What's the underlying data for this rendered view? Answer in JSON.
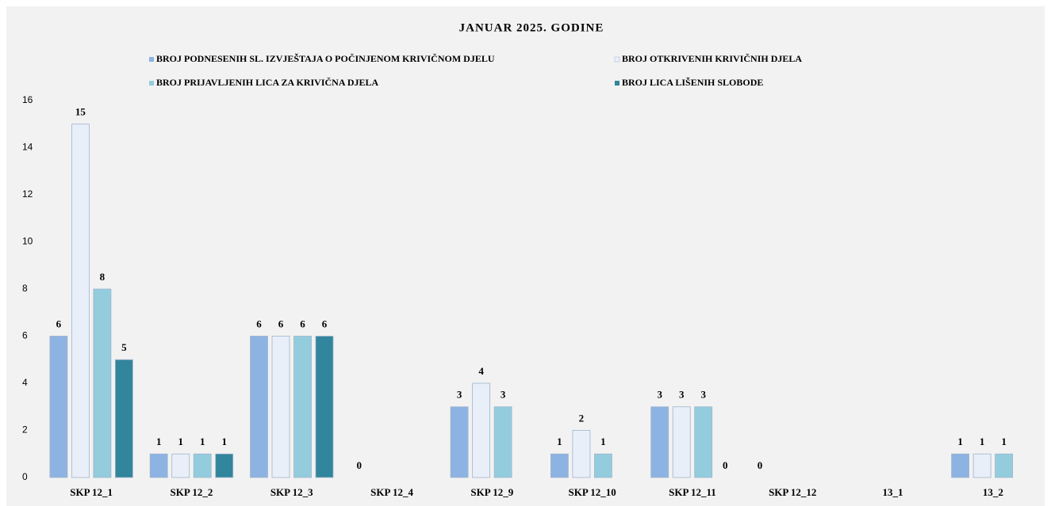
{
  "chart_data": {
    "type": "bar",
    "title": "JANUAR 2025. GODINE",
    "categories": [
      "SKP  12_1",
      "SKP  12_2",
      "SKP  12_3",
      "SKP  12_4",
      "SKP  12_9",
      "SKP  12_10",
      "SKP  12_11",
      "SKP 12_12",
      "13_1",
      "13_2"
    ],
    "series": [
      {
        "name": "BROJ PODNESENIH SL. IZVJEŠTAJA O POČINJENOM KRIVIČNOM DJELU",
        "color": "#8db3e2",
        "values": [
          6,
          1,
          6,
          0,
          3,
          1,
          3,
          0,
          null,
          1
        ]
      },
      {
        "name": "BROJ OTKRIVENIH KRIVIČNIH DJELA",
        "color": "#e9eff9",
        "values": [
          15,
          1,
          6,
          null,
          4,
          2,
          3,
          null,
          null,
          1
        ]
      },
      {
        "name": "BROJ PRIJAVLJENIH LICA ZA KRIVIČNA DJELA",
        "color": "#93cddd",
        "values": [
          8,
          1,
          6,
          null,
          3,
          1,
          3,
          null,
          null,
          1
        ]
      },
      {
        "name": "BROJ LICA LIŠENIH SLOBODE",
        "color": "#31859c",
        "values": [
          5,
          1,
          6,
          null,
          null,
          null,
          0,
          null,
          null,
          null
        ]
      }
    ],
    "ylim": [
      0,
      16
    ],
    "yticks": [
      0,
      2,
      4,
      6,
      8,
      10,
      12,
      14,
      16
    ],
    "grid": false
  }
}
